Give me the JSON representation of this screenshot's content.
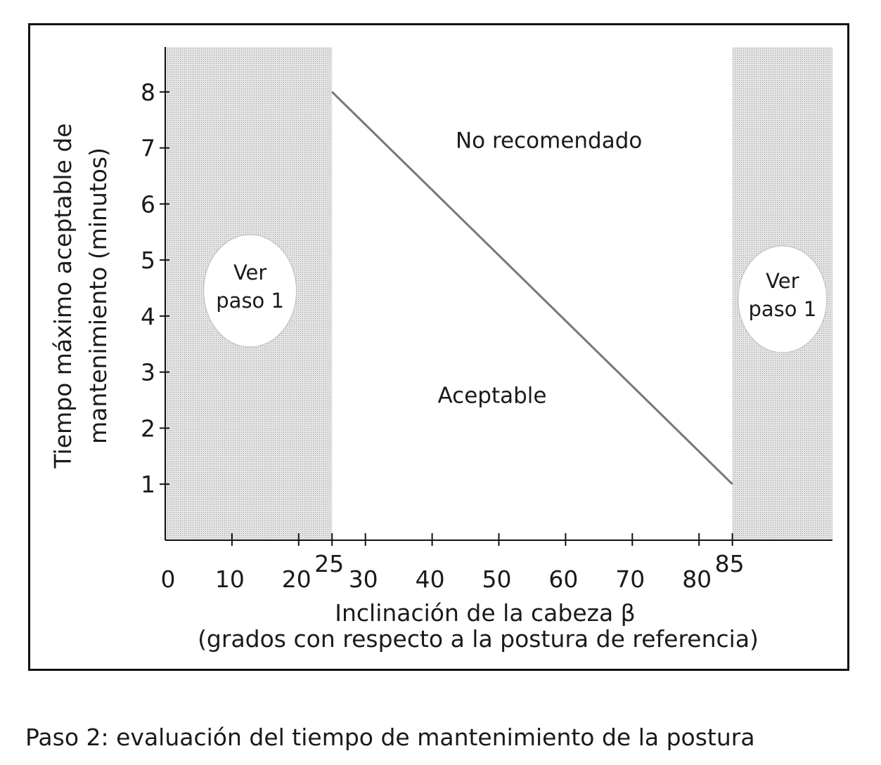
{
  "caption": "Paso 2: evaluación del tiempo de mantenimiento de la postura",
  "chart_data": {
    "type": "line",
    "title": "",
    "xlabel": "Inclinación de la cabeza β",
    "xlabel_sub": "(grados con respecto a la postura de referencia)",
    "ylabel": "Tiempo máximo aceptable de",
    "ylabel_sub": "mantenimiento (minutos)",
    "xlim": [
      0,
      100
    ],
    "ylim": [
      0,
      8.8
    ],
    "x_ticks": [
      0,
      10,
      20,
      25,
      30,
      40,
      50,
      60,
      70,
      80,
      85
    ],
    "x_tick_labels": [
      "0",
      "10",
      "20",
      "25",
      "30",
      "40",
      "50",
      "60",
      "70",
      "80",
      "85"
    ],
    "y_ticks": [
      1,
      2,
      3,
      4,
      5,
      6,
      7,
      8
    ],
    "y_tick_labels": [
      "1",
      "2",
      "3",
      "4",
      "5",
      "6",
      "7",
      "8"
    ],
    "series": [
      {
        "x": [
          25,
          85
        ],
        "y": [
          8,
          1
        ]
      }
    ],
    "shaded_regions": [
      {
        "x_start": 0,
        "x_end": 25,
        "label_lines": [
          "Ver",
          "paso 1"
        ]
      },
      {
        "x_start": 85,
        "x_end": 100,
        "label_lines": [
          "Ver",
          "paso 1"
        ]
      }
    ],
    "zone_labels": {
      "above_line": "No recomendado",
      "below_line": "Aceptable"
    },
    "grid": false,
    "colors": {
      "shade": "#cfcfcf",
      "line": "#777777",
      "axis": "#111111"
    }
  }
}
